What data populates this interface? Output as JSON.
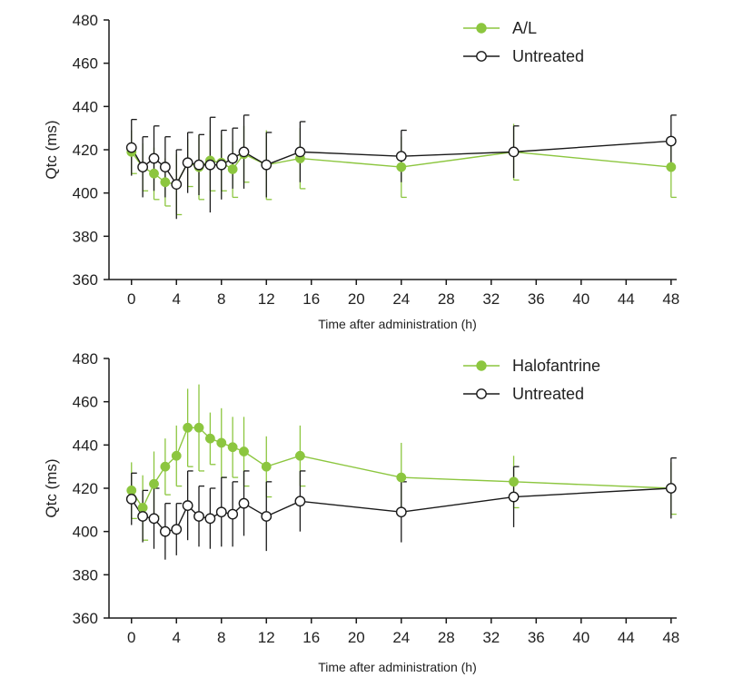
{
  "colors": {
    "treated": "#8cc63f",
    "untreated": "#1a1a1a",
    "axis": "#1a1a1a"
  },
  "chart_data": [
    {
      "type": "line",
      "name": "al-panel",
      "title": "",
      "xlabel": "Time after administration (h)",
      "ylabel": "Qtc (ms)",
      "xlim": [
        -2,
        48.5
      ],
      "ylim": [
        360,
        480
      ],
      "xticks": [
        0,
        4,
        8,
        12,
        16,
        20,
        24,
        28,
        32,
        36,
        40,
        44,
        48
      ],
      "yticks": [
        360,
        380,
        400,
        420,
        440,
        460,
        480
      ],
      "legend_position": "top-right",
      "series": [
        {
          "name": "A/L",
          "style": "filled",
          "color": "#8cc63f",
          "x": [
            0,
            1,
            2,
            3,
            4,
            5,
            6,
            7,
            8,
            9,
            10,
            12,
            15,
            24,
            34,
            48
          ],
          "y": [
            419,
            412,
            409,
            405,
            404,
            414,
            412,
            415,
            414,
            411,
            418,
            413,
            416,
            412,
            419,
            412
          ],
          "err": [
            10,
            11,
            12,
            11,
            14,
            11,
            15,
            14,
            13,
            13,
            13,
            16,
            14,
            14,
            13,
            14
          ]
        },
        {
          "name": "Untreated",
          "style": "open",
          "color": "#1a1a1a",
          "x": [
            0,
            1,
            2,
            3,
            4,
            5,
            6,
            7,
            8,
            9,
            10,
            12,
            15,
            24,
            34,
            48
          ],
          "y": [
            421,
            412,
            416,
            412,
            404,
            414,
            413,
            413,
            413,
            416,
            419,
            413,
            419,
            417,
            419,
            424
          ],
          "err": [
            13,
            14,
            15,
            14,
            16,
            14,
            14,
            22,
            16,
            14,
            17,
            15,
            14,
            12,
            12,
            12
          ]
        }
      ]
    },
    {
      "type": "line",
      "name": "halofantrine-panel",
      "title": "",
      "xlabel": "Time after administration (h)",
      "ylabel": "Qtc (ms)",
      "xlim": [
        -2,
        48.5
      ],
      "ylim": [
        360,
        480
      ],
      "xticks": [
        0,
        4,
        8,
        12,
        16,
        20,
        24,
        28,
        32,
        36,
        40,
        44,
        48
      ],
      "yticks": [
        360,
        380,
        400,
        420,
        440,
        460,
        480
      ],
      "legend_position": "top-right",
      "series": [
        {
          "name": "Halofantrine",
          "style": "filled",
          "color": "#8cc63f",
          "x": [
            0,
            1,
            2,
            3,
            4,
            5,
            6,
            7,
            8,
            9,
            10,
            12,
            15,
            24,
            34,
            48
          ],
          "y": [
            419,
            411,
            422,
            430,
            435,
            448,
            448,
            443,
            441,
            439,
            437,
            430,
            435,
            425,
            423,
            420
          ],
          "err": [
            13,
            15,
            15,
            13,
            14,
            18,
            20,
            12,
            16,
            14,
            16,
            14,
            14,
            16,
            12,
            12
          ]
        },
        {
          "name": "Untreated",
          "style": "open",
          "color": "#1a1a1a",
          "x": [
            0,
            1,
            2,
            3,
            4,
            5,
            6,
            7,
            8,
            9,
            10,
            12,
            15,
            24,
            34,
            48
          ],
          "y": [
            415,
            407,
            406,
            400,
            401,
            412,
            407,
            406,
            409,
            408,
            413,
            407,
            414,
            409,
            416,
            420
          ],
          "err": [
            12,
            12,
            14,
            13,
            12,
            16,
            14,
            14,
            16,
            15,
            15,
            16,
            14,
            14,
            14,
            14
          ]
        }
      ]
    }
  ]
}
